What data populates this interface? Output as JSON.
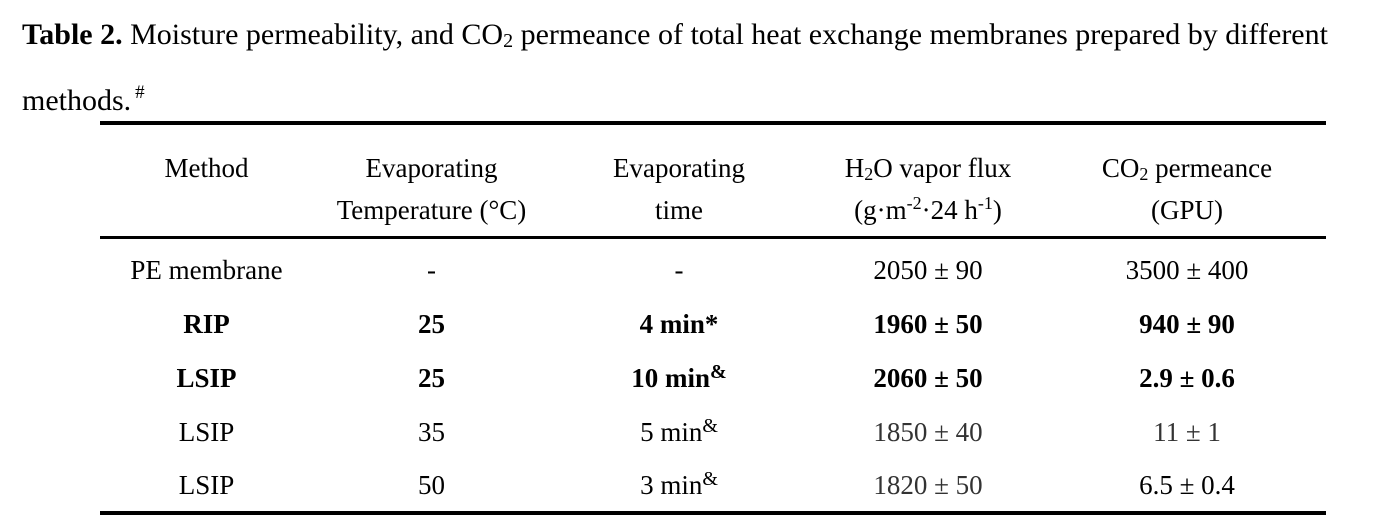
{
  "caption": {
    "label": "Table 2.",
    "text_before_sub": " Moisture permeability, and CO",
    "sub": "2",
    "text_after_sub": " permeance of total heat exchange membranes prepared by different methods.",
    "footnote_mark": "#"
  },
  "table": {
    "header": {
      "method": "Method",
      "temp_line1": "Evaporating",
      "temp_line2": "Temperature (°C)",
      "time_line1": "Evaporating",
      "time_line2": "time",
      "flux_line1_pre": "H",
      "flux_line1_sub": "2",
      "flux_line1_post": "O vapor flux",
      "flux_line2_a": "(g·m",
      "flux_line2_sup1": "-2",
      "flux_line2_b": "·24 h",
      "flux_line2_sup2": "-1",
      "flux_line2_c": ")",
      "co2_line1_pre": "CO",
      "co2_line1_sub": "2",
      "co2_line1_post": " permeance",
      "co2_line2": "(GPU)"
    },
    "rows": [
      {
        "method": "PE membrane",
        "temp": "-",
        "time": "-",
        "time_mark": "",
        "flux": "2050 ± 90",
        "co2": "3500 ± 400"
      },
      {
        "method": "RIP",
        "temp": "25",
        "time": "4 min*",
        "time_mark": "",
        "flux": "1960 ± 50",
        "co2": "940 ± 90"
      },
      {
        "method": "LSIP",
        "temp": "25",
        "time": "10 min",
        "time_mark": "&",
        "flux": "2060 ± 50",
        "co2": "2.9 ± 0.6"
      },
      {
        "method": "LSIP",
        "temp": "35",
        "time": "5 min",
        "time_mark": "&",
        "flux": "1850 ± 40",
        "co2": "11 ± 1"
      },
      {
        "method": "LSIP",
        "temp": "50",
        "time": "3 min",
        "time_mark": "&",
        "flux": "1820 ± 50",
        "co2": "6.5 ± 0.4"
      }
    ]
  }
}
